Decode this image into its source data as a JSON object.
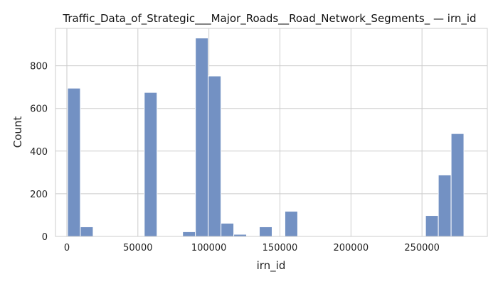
{
  "chart_data": {
    "type": "bar",
    "title": "Traffic_Data_of_Strategic___Major_Roads__Road_Network_Segments_ — irn_id",
    "xlabel": "irn_id",
    "ylabel": "Count",
    "xlim": [
      -8000,
      296000
    ],
    "ylim": [
      0,
      975
    ],
    "xticks": [
      0,
      50000,
      100000,
      150000,
      200000,
      250000
    ],
    "yticks": [
      0,
      200,
      400,
      600,
      800
    ],
    "grid": true,
    "bar_color": "#7391c3",
    "bin_width": 9000,
    "bins": [
      {
        "x": 500,
        "count": 695
      },
      {
        "x": 9500,
        "count": 45
      },
      {
        "x": 18500,
        "count": 0
      },
      {
        "x": 27500,
        "count": 0
      },
      {
        "x": 36500,
        "count": 0
      },
      {
        "x": 45500,
        "count": 0
      },
      {
        "x": 54500,
        "count": 675
      },
      {
        "x": 63500,
        "count": 0
      },
      {
        "x": 72500,
        "count": 0
      },
      {
        "x": 81500,
        "count": 22
      },
      {
        "x": 90500,
        "count": 930
      },
      {
        "x": 99500,
        "count": 752
      },
      {
        "x": 108500,
        "count": 62
      },
      {
        "x": 117500,
        "count": 10
      },
      {
        "x": 126500,
        "count": 0
      },
      {
        "x": 135500,
        "count": 45
      },
      {
        "x": 144500,
        "count": 0
      },
      {
        "x": 153500,
        "count": 118
      },
      {
        "x": 162500,
        "count": 0
      },
      {
        "x": 171500,
        "count": 0
      },
      {
        "x": 180500,
        "count": 0
      },
      {
        "x": 189500,
        "count": 0
      },
      {
        "x": 198500,
        "count": 0
      },
      {
        "x": 207500,
        "count": 0
      },
      {
        "x": 216500,
        "count": 0
      },
      {
        "x": 225500,
        "count": 0
      },
      {
        "x": 234500,
        "count": 0
      },
      {
        "x": 243500,
        "count": 0
      },
      {
        "x": 252500,
        "count": 98
      },
      {
        "x": 261500,
        "count": 288
      },
      {
        "x": 270500,
        "count": 482
      }
    ]
  }
}
